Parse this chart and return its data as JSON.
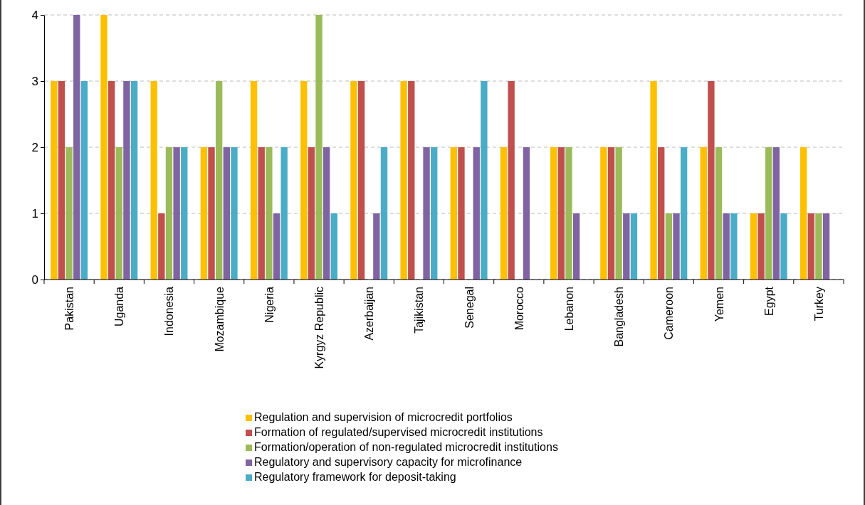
{
  "chart_data": {
    "type": "bar",
    "categories": [
      "Pakistan",
      "Uganda",
      "Indonesia",
      "Mozambique",
      "Nigeria",
      "Kyrgyz Republic",
      "Azerbaijan",
      "Tajikistan",
      "Senegal",
      "Morocco",
      "Lebanon",
      "Bangladesh",
      "Cameroon",
      "Yemen",
      "Egypt",
      "Turkey"
    ],
    "series": [
      {
        "name": "Regulation and supervision of microcredit portfolios",
        "color": "#ffc000",
        "values": [
          3,
          4,
          3,
          2,
          3,
          3,
          3,
          3,
          2,
          2,
          2,
          2,
          3,
          2,
          1,
          2
        ]
      },
      {
        "name": "Formation of regulated/supervised microcredit institutions",
        "color": "#c0504d",
        "values": [
          3,
          3,
          1,
          2,
          2,
          2,
          3,
          3,
          2,
          3,
          2,
          2,
          2,
          3,
          1,
          1
        ]
      },
      {
        "name": "Formation/operation of non-regulated microcredit institutions",
        "color": "#9bbb59",
        "values": [
          2,
          2,
          2,
          3,
          2,
          4,
          0,
          0,
          0,
          0,
          2,
          2,
          1,
          2,
          2,
          1
        ]
      },
      {
        "name": "Regulatory and supervisory capacity for microfinance",
        "color": "#8064a2",
        "values": [
          4,
          3,
          2,
          2,
          1,
          2,
          1,
          2,
          2,
          2,
          1,
          1,
          1,
          1,
          2,
          1
        ]
      },
      {
        "name": "Regulatory framework for deposit-taking",
        "color": "#4bacc6",
        "values": [
          3,
          3,
          2,
          2,
          2,
          1,
          2,
          2,
          3,
          0,
          0,
          1,
          2,
          1,
          1,
          0
        ]
      }
    ],
    "ylim": [
      0,
      4
    ],
    "yticks": [
      0,
      1,
      2,
      3,
      4
    ],
    "grid": "y",
    "legend": "bottom"
  }
}
